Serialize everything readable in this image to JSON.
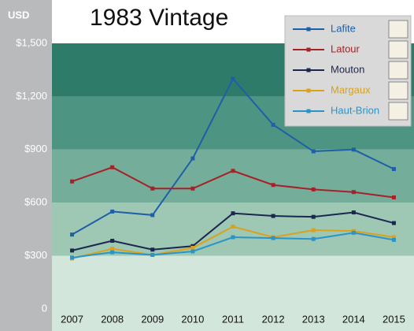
{
  "chart_data": {
    "type": "line",
    "title": "1983 Vintage",
    "y_label": "USD",
    "categories": [
      "2007",
      "2008",
      "2009",
      "2010",
      "2011",
      "2012",
      "2013",
      "2014",
      "2015"
    ],
    "series": [
      {
        "name": "Lafite",
        "color": "#1f5fa8",
        "values": [
          420,
          550,
          530,
          850,
          1300,
          1040,
          890,
          900,
          790
        ]
      },
      {
        "name": "Latour",
        "color": "#a52228",
        "values": [
          720,
          800,
          680,
          680,
          780,
          700,
          675,
          660,
          630
        ]
      },
      {
        "name": "Mouton",
        "color": "#1c2750",
        "values": [
          330,
          385,
          335,
          355,
          540,
          525,
          520,
          545,
          485
        ]
      },
      {
        "name": "Margaux",
        "color": "#d9a21b",
        "values": [
          285,
          340,
          305,
          345,
          465,
          405,
          445,
          440,
          405
        ]
      },
      {
        "name": "Haut-Brion",
        "color": "#2a94c9",
        "values": [
          290,
          320,
          305,
          325,
          405,
          400,
          395,
          430,
          390
        ]
      }
    ],
    "ylim": [
      0,
      1500
    ],
    "yticks": [
      0,
      {
        "value": 300,
        "label": "$300"
      },
      {
        "value": 600,
        "label": "$600"
      },
      {
        "value": 900,
        "label": "$900"
      },
      {
        "value": 1200,
        "label": "$1,200"
      },
      {
        "value": 1500,
        "label": "$1,500"
      }
    ],
    "band_colors": [
      "#d3e6dc",
      "#9fc8b4",
      "#74ad9a",
      "#4e9483",
      "#2f7b6a"
    ],
    "legend": "upper right"
  }
}
